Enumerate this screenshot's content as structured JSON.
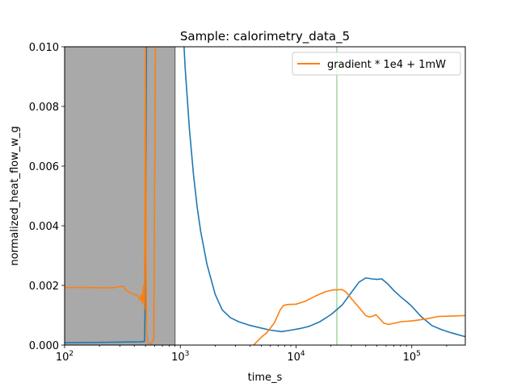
{
  "chart_data": {
    "type": "line",
    "title": "Sample: calorimetry_data_5",
    "xlabel": "time_s",
    "ylabel": "normalized_heat_flow_w_g",
    "xscale": "log",
    "xlim": [
      100,
      290000
    ],
    "ylim": [
      0,
      0.01
    ],
    "x_ticks": [
      {
        "value": 100,
        "base": "10",
        "exp": "2"
      },
      {
        "value": 1000,
        "base": "10",
        "exp": "3"
      },
      {
        "value": 10000,
        "base": "10",
        "exp": "4"
      },
      {
        "value": 100000,
        "base": "10",
        "exp": "5"
      }
    ],
    "y_ticks": [
      "0.000",
      "0.002",
      "0.004",
      "0.006",
      "0.008",
      "0.010"
    ],
    "y_tick_values": [
      0,
      0.002,
      0.004,
      0.006,
      0.008,
      0.01
    ],
    "grid": false,
    "legend_position": "top-right",
    "shaded_region": {
      "x_start": 100,
      "x_end": 900,
      "color": "#a9a9a9"
    },
    "vertical_line": {
      "x": 22500,
      "color": "#a4d7a0"
    },
    "series": [
      {
        "name": "",
        "color": "#1f77b4",
        "points": [
          [
            100,
            8e-05
          ],
          [
            200,
            9e-05
          ],
          [
            300,
            0.0001
          ],
          [
            450,
            0.00011
          ],
          [
            490,
            0.00012
          ],
          [
            500,
            0.002
          ],
          [
            505,
            0.006
          ],
          [
            510,
            0.0105
          ],
          [
            1060,
            0.0105
          ],
          [
            1100,
            0.0093
          ],
          [
            1200,
            0.0072
          ],
          [
            1300,
            0.0057
          ],
          [
            1400,
            0.0046
          ],
          [
            1500,
            0.0038
          ],
          [
            1700,
            0.0027
          ],
          [
            2000,
            0.0017
          ],
          [
            2300,
            0.00118
          ],
          [
            2700,
            0.00092
          ],
          [
            3200,
            0.00078
          ],
          [
            4000,
            0.00066
          ],
          [
            5000,
            0.00057
          ],
          [
            6000,
            0.0005
          ],
          [
            7500,
            0.00045
          ],
          [
            9000,
            0.0005
          ],
          [
            11000,
            0.00056
          ],
          [
            13000,
            0.00063
          ],
          [
            16000,
            0.00078
          ],
          [
            20000,
            0.00102
          ],
          [
            25000,
            0.00134
          ],
          [
            30000,
            0.00176
          ],
          [
            35000,
            0.00211
          ],
          [
            40000,
            0.00225
          ],
          [
            45000,
            0.00222
          ],
          [
            50000,
            0.0022
          ],
          [
            55000,
            0.00222
          ],
          [
            62000,
            0.00205
          ],
          [
            70000,
            0.00183
          ],
          [
            80000,
            0.00162
          ],
          [
            90000,
            0.00146
          ],
          [
            100000,
            0.0013
          ],
          [
            120000,
            0.00096
          ],
          [
            150000,
            0.00065
          ],
          [
            180000,
            0.00052
          ],
          [
            220000,
            0.00041
          ],
          [
            290000,
            0.00028
          ]
        ]
      },
      {
        "name": "gradient * 1e4 + 1mW",
        "color": "#ff7f0e",
        "points": [
          [
            100,
            0.00193
          ],
          [
            150,
            0.00193
          ],
          [
            200,
            0.00192
          ],
          [
            260,
            0.00192
          ],
          [
            300,
            0.00196
          ],
          [
            320,
            0.00197
          ],
          [
            340,
            0.00184
          ],
          [
            370,
            0.00175
          ],
          [
            400,
            0.0017
          ],
          [
            430,
            0.00165
          ],
          [
            450,
            0.0015
          ],
          [
            460,
            0.0017
          ],
          [
            470,
            0.0014
          ],
          [
            480,
            0.002
          ],
          [
            490,
            0.0012
          ],
          [
            497,
            0.0075
          ],
          [
            500,
            0.0105
          ],
          [
            505,
            0.003
          ],
          [
            510,
            0.0005
          ],
          [
            520,
            0.0001
          ],
          [
            540,
            5e-05
          ],
          [
            560,
            5e-05
          ],
          [
            590,
            0.0002
          ],
          [
            610,
            0.0105
          ]
        ]
      },
      {
        "name": "",
        "color": "#ff7f0e",
        "points": [
          [
            4300,
            0.0
          ],
          [
            4600,
            0.00012
          ],
          [
            5000,
            0.00026
          ],
          [
            5600,
            0.00042
          ],
          [
            6500,
            0.00075
          ],
          [
            7300,
            0.00118
          ],
          [
            7800,
            0.00133
          ],
          [
            8500,
            0.00136
          ],
          [
            10000,
            0.00137
          ],
          [
            12000,
            0.00147
          ],
          [
            15000,
            0.00166
          ],
          [
            18000,
            0.00179
          ],
          [
            21000,
            0.00185
          ],
          [
            25000,
            0.00186
          ],
          [
            27000,
            0.00178
          ],
          [
            30000,
            0.00156
          ],
          [
            35000,
            0.00126
          ],
          [
            40000,
            0.00099
          ],
          [
            43000,
            0.00094
          ],
          [
            46000,
            0.00097
          ],
          [
            49000,
            0.00102
          ],
          [
            53000,
            0.00088
          ],
          [
            57000,
            0.00074
          ],
          [
            63000,
            0.00069
          ],
          [
            70000,
            0.00073
          ],
          [
            80000,
            0.00078
          ],
          [
            100000,
            0.00081
          ],
          [
            130000,
            0.00087
          ],
          [
            170000,
            0.00096
          ],
          [
            220000,
            0.00097
          ],
          [
            290000,
            0.00099
          ]
        ]
      }
    ]
  }
}
